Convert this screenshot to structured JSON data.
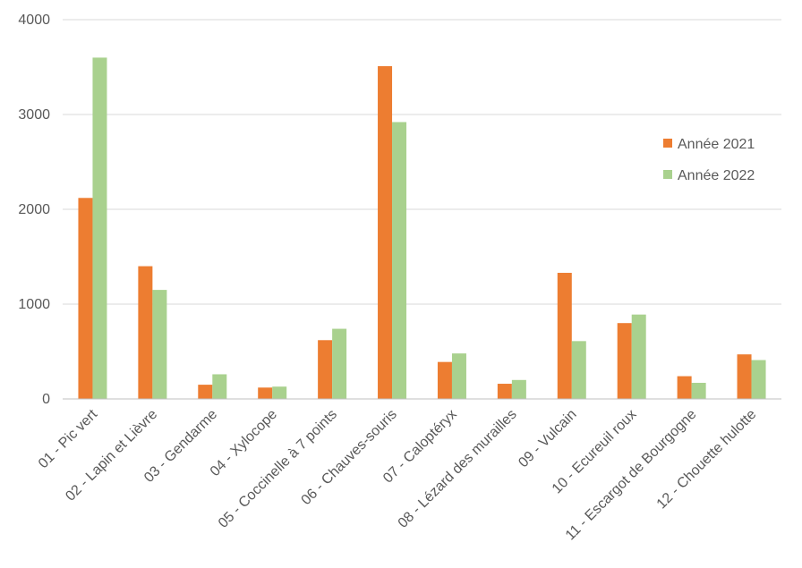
{
  "chart_data": {
    "type": "bar",
    "title": "",
    "xlabel": "",
    "ylabel": "",
    "ylim": [
      0,
      4000
    ],
    "yticks": [
      0,
      1000,
      2000,
      3000,
      4000
    ],
    "grid": true,
    "legend_position": "right",
    "categories": [
      "01 - Pic vert",
      "02 - Lapin et Lièvre",
      "03 - Gendarme",
      "04 - Xylocope",
      "05 - Coccinelle à 7 points",
      "06 - Chauves-souris",
      "07 - Caloptéryx",
      "08 - Lézard des murailles",
      "09 - Vulcain",
      "10 - Ecureuil roux",
      "11 - Escargot de Bourgogne",
      "12 - Chouette hulotte"
    ],
    "series": [
      {
        "name": "Année 2021",
        "color": "#ED7D31",
        "values": [
          2120,
          1400,
          150,
          120,
          620,
          3510,
          390,
          160,
          1330,
          800,
          240,
          470
        ]
      },
      {
        "name": "Année 2022",
        "color": "#A9D18E",
        "values": [
          3600,
          1150,
          260,
          130,
          740,
          2920,
          480,
          200,
          610,
          890,
          170,
          410
        ]
      }
    ]
  }
}
